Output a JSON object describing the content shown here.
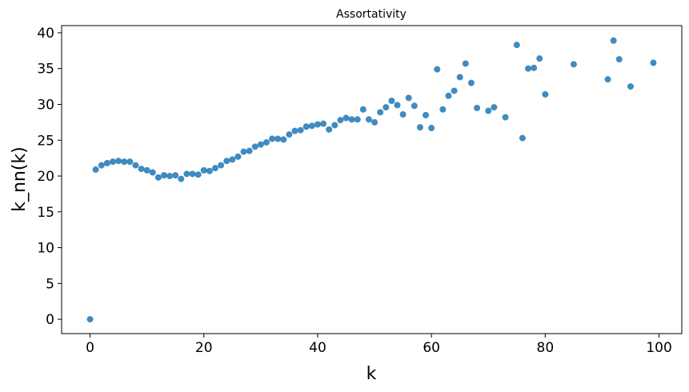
{
  "chart_data": {
    "type": "scatter",
    "title": "Assortativity",
    "xlabel": "k",
    "ylabel": "k_nn(k)",
    "xlim": [
      -5,
      104
    ],
    "ylim": [
      -2,
      41
    ],
    "xticks": [
      0,
      20,
      40,
      60,
      80,
      100
    ],
    "yticks": [
      0,
      5,
      10,
      15,
      20,
      25,
      30,
      35,
      40
    ],
    "grid": false,
    "legend": "none",
    "marker_color": "#1f77b4",
    "series": [
      {
        "x": [
          0,
          1,
          2,
          3,
          4,
          5,
          6,
          7,
          8,
          9,
          10,
          11,
          12,
          13,
          14,
          15,
          16,
          17,
          18,
          19,
          20,
          21,
          22,
          23,
          24,
          25,
          26,
          27,
          28,
          29,
          30,
          31,
          32,
          33,
          34,
          35,
          36,
          37,
          38,
          39,
          40,
          41,
          42,
          43,
          44,
          45,
          46,
          47,
          48,
          49,
          50,
          51,
          52,
          53,
          54,
          55,
          56,
          57,
          58,
          59,
          60,
          61,
          62,
          63,
          64,
          65,
          66,
          67,
          68,
          70,
          71,
          73,
          75,
          76,
          77,
          78,
          79,
          80,
          85,
          91,
          92,
          93,
          95,
          99
        ],
        "y": [
          0,
          20.9,
          21.5,
          21.8,
          22.0,
          22.1,
          22.0,
          22.0,
          21.5,
          21.0,
          20.8,
          20.5,
          19.8,
          20.1,
          20.0,
          20.1,
          19.6,
          20.3,
          20.3,
          20.2,
          20.8,
          20.7,
          21.1,
          21.5,
          22.1,
          22.3,
          22.7,
          23.4,
          23.5,
          24.1,
          24.4,
          24.7,
          25.2,
          25.2,
          25.1,
          25.8,
          26.3,
          26.4,
          26.9,
          27.0,
          27.2,
          27.3,
          26.5,
          27.1,
          27.8,
          28.1,
          27.9,
          27.9,
          29.3,
          27.9,
          27.5,
          28.9,
          29.6,
          30.5,
          29.9,
          28.6,
          30.9,
          29.8,
          26.8,
          28.5,
          26.7,
          34.9,
          29.3,
          31.2,
          31.9,
          33.8,
          35.7,
          33.0,
          29.5,
          29.1,
          29.6,
          28.2,
          38.3,
          25.3,
          35.0,
          35.1,
          36.4,
          31.4,
          35.6,
          33.5,
          38.9,
          36.3,
          32.5,
          35.8
        ]
      }
    ]
  }
}
